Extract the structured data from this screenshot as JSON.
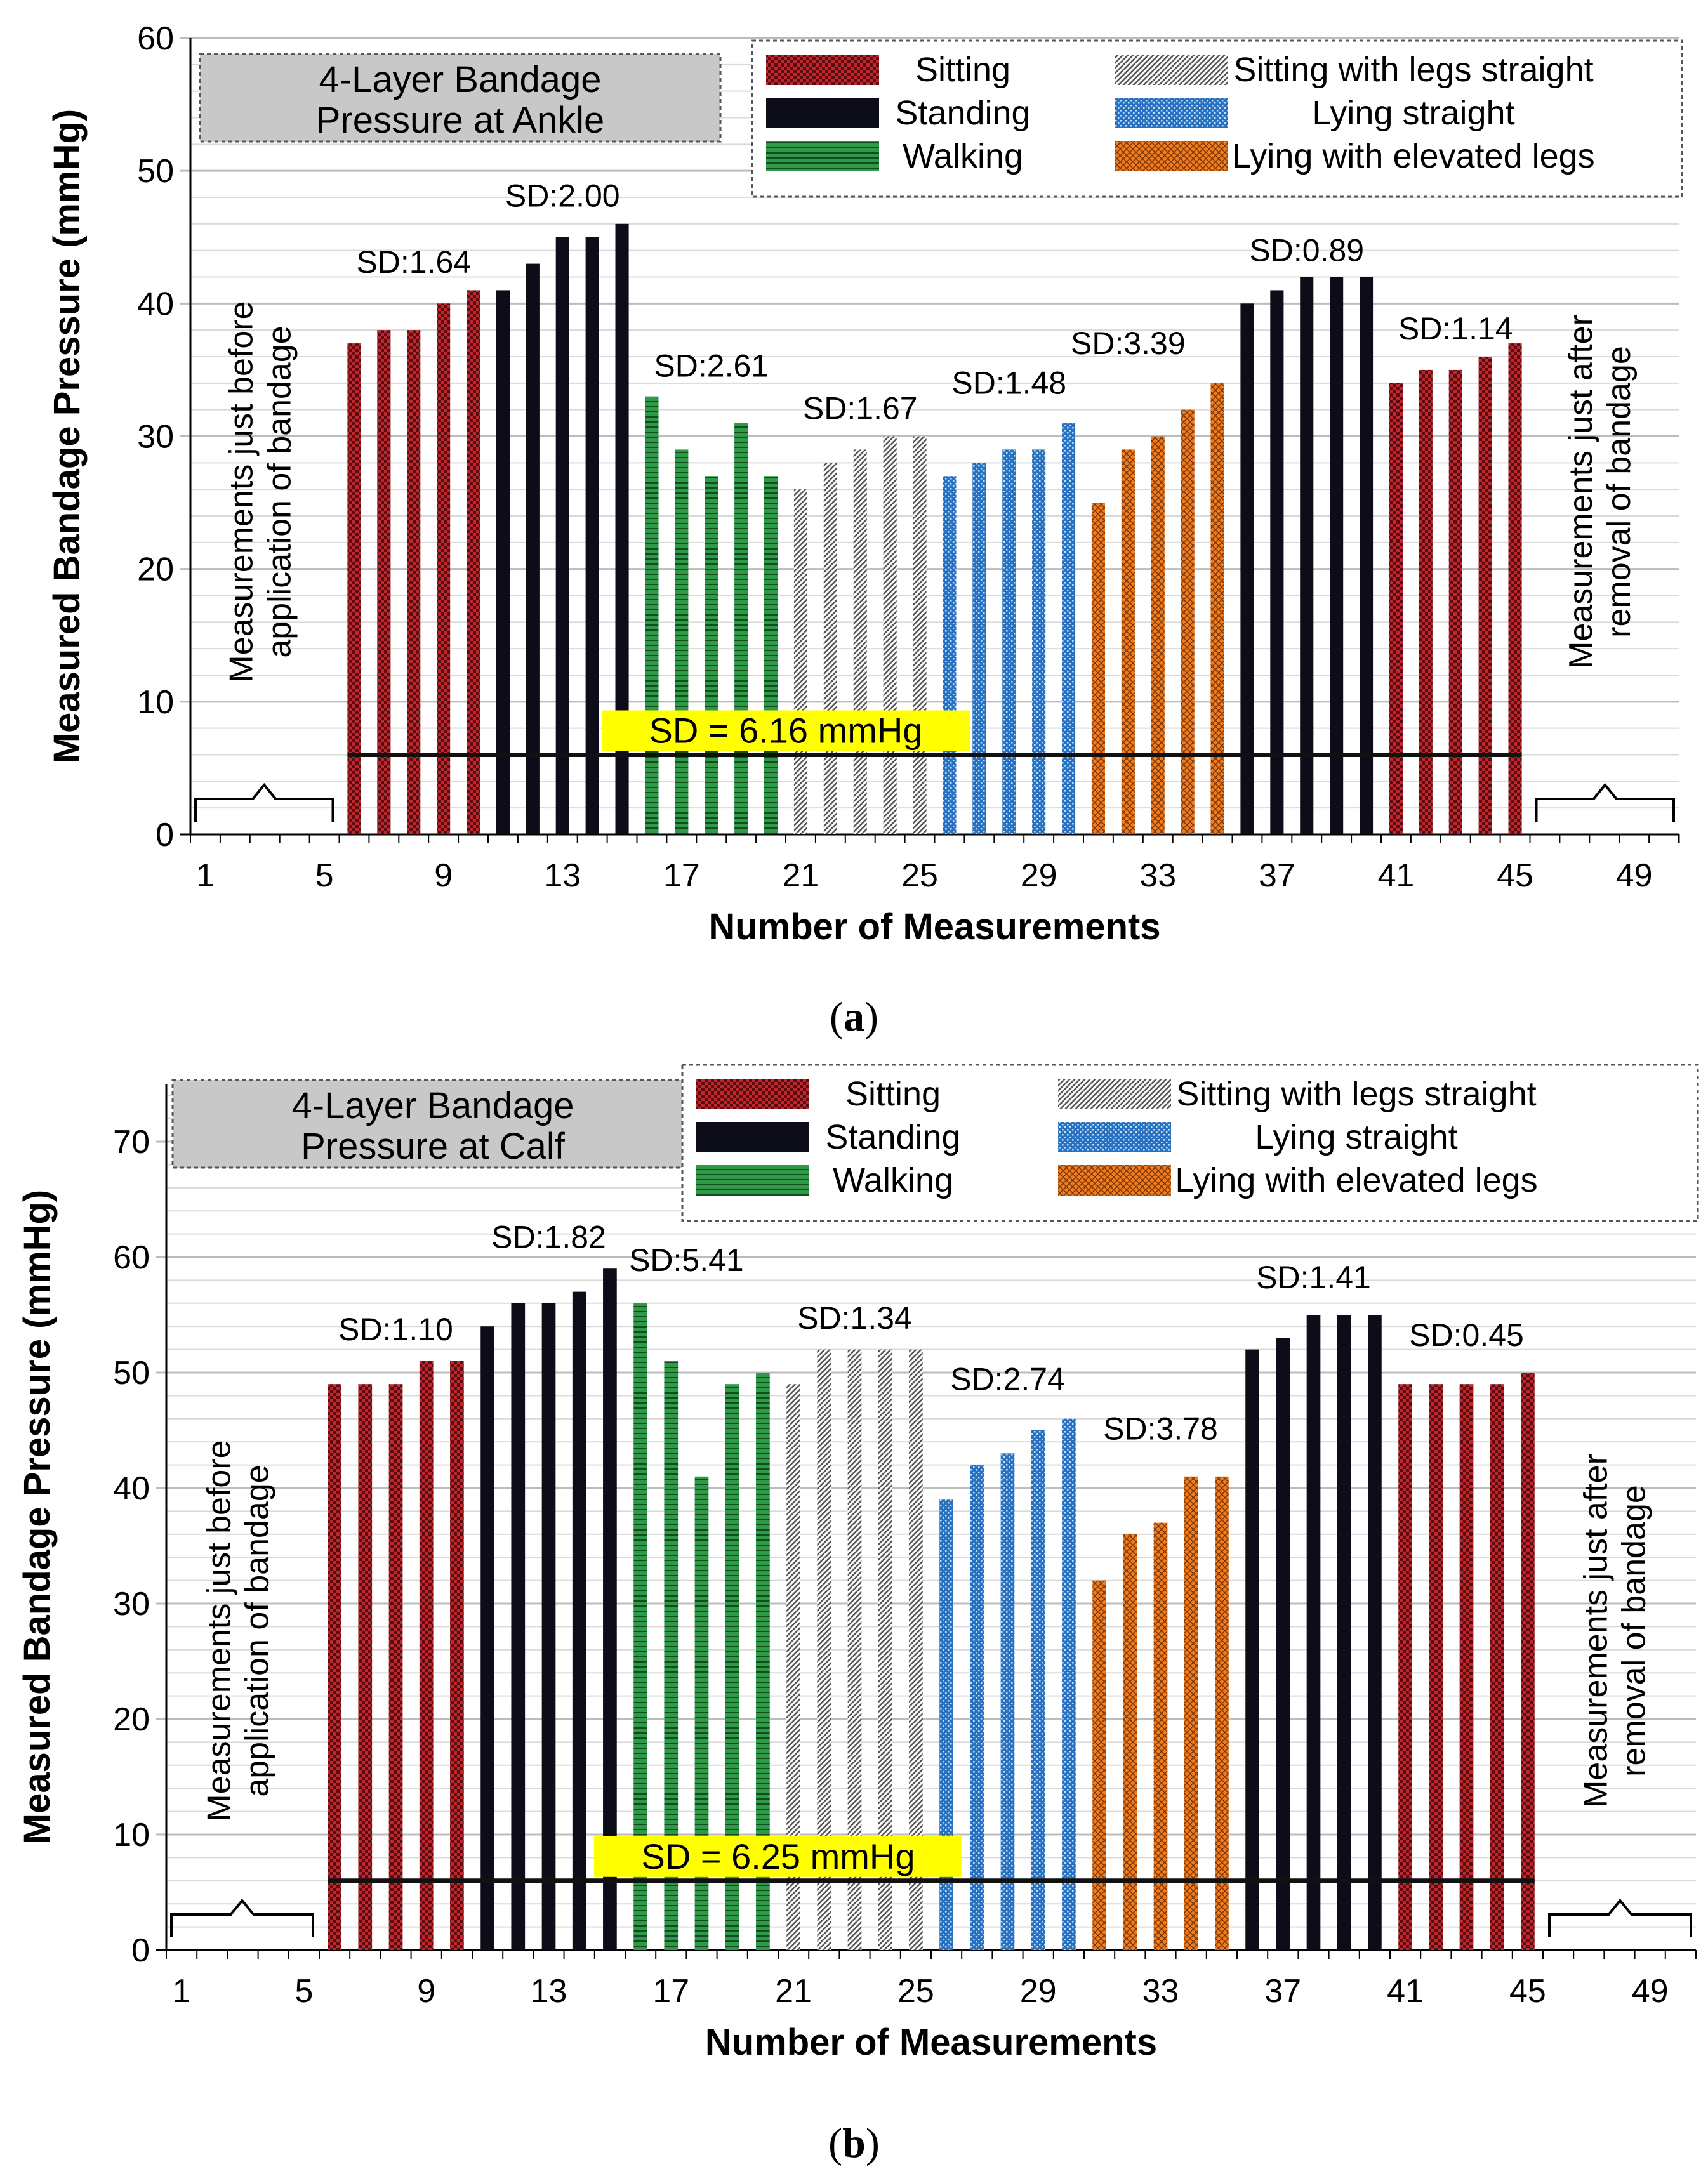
{
  "colors": {
    "sitting": "#c0262c",
    "standing": "#0d0d1a",
    "walking": "#2e9a48",
    "sitting_legs_straight": "#9c9c9c",
    "lying_straight": "#2a72c0",
    "lying_elevated": "#ee7d22",
    "grid": "#c8c8c8",
    "title_box": "#c8c8c8",
    "sd_highlight": "#ffff00"
  },
  "legend": [
    {
      "key": "sitting",
      "label": "Sitting"
    },
    {
      "key": "standing",
      "label": "Standing"
    },
    {
      "key": "walking",
      "label": "Walking"
    },
    {
      "key": "sitting_legs_straight",
      "label": "Sitting with legs straight"
    },
    {
      "key": "lying_straight",
      "label": "Lying straight"
    },
    {
      "key": "lying_elevated",
      "label": "Lying with elevated legs"
    }
  ],
  "chart_data": [
    {
      "type": "bar",
      "panel": "a",
      "caption": "a",
      "title_line1": "4-Layer Bandage",
      "title_line2": "Pressure at Ankle",
      "xlabel": "Number of Measurements",
      "ylabel": "Measured Bandage Pressure (mmHg)",
      "ylim": [
        0,
        60
      ],
      "yticks": [
        0,
        10,
        20,
        30,
        40,
        50,
        60
      ],
      "xlim": [
        1,
        50
      ],
      "xticks": [
        1,
        5,
        9,
        13,
        17,
        21,
        25,
        29,
        33,
        37,
        41,
        45,
        49
      ],
      "bars": [
        {
          "x": 6,
          "value": 37,
          "group": "sitting"
        },
        {
          "x": 7,
          "value": 38,
          "group": "sitting"
        },
        {
          "x": 8,
          "value": 38,
          "group": "sitting"
        },
        {
          "x": 9,
          "value": 40,
          "group": "sitting"
        },
        {
          "x": 10,
          "value": 41,
          "group": "sitting"
        },
        {
          "x": 11,
          "value": 41,
          "group": "standing"
        },
        {
          "x": 12,
          "value": 43,
          "group": "standing"
        },
        {
          "x": 13,
          "value": 45,
          "group": "standing"
        },
        {
          "x": 14,
          "value": 45,
          "group": "standing"
        },
        {
          "x": 15,
          "value": 46,
          "group": "standing"
        },
        {
          "x": 16,
          "value": 33,
          "group": "walking"
        },
        {
          "x": 17,
          "value": 29,
          "group": "walking"
        },
        {
          "x": 18,
          "value": 27,
          "group": "walking"
        },
        {
          "x": 19,
          "value": 31,
          "group": "walking"
        },
        {
          "x": 20,
          "value": 27,
          "group": "walking"
        },
        {
          "x": 21,
          "value": 26,
          "group": "sitting_legs_straight"
        },
        {
          "x": 22,
          "value": 28,
          "group": "sitting_legs_straight"
        },
        {
          "x": 23,
          "value": 29,
          "group": "sitting_legs_straight"
        },
        {
          "x": 24,
          "value": 30,
          "group": "sitting_legs_straight"
        },
        {
          "x": 25,
          "value": 30,
          "group": "sitting_legs_straight"
        },
        {
          "x": 26,
          "value": 27,
          "group": "lying_straight"
        },
        {
          "x": 27,
          "value": 28,
          "group": "lying_straight"
        },
        {
          "x": 28,
          "value": 29,
          "group": "lying_straight"
        },
        {
          "x": 29,
          "value": 29,
          "group": "lying_straight"
        },
        {
          "x": 30,
          "value": 31,
          "group": "lying_straight"
        },
        {
          "x": 31,
          "value": 25,
          "group": "lying_elevated"
        },
        {
          "x": 32,
          "value": 29,
          "group": "lying_elevated"
        },
        {
          "x": 33,
          "value": 30,
          "group": "lying_elevated"
        },
        {
          "x": 34,
          "value": 32,
          "group": "lying_elevated"
        },
        {
          "x": 35,
          "value": 34,
          "group": "lying_elevated"
        },
        {
          "x": 36,
          "value": 40,
          "group": "standing"
        },
        {
          "x": 37,
          "value": 41,
          "group": "standing"
        },
        {
          "x": 38,
          "value": 42,
          "group": "standing"
        },
        {
          "x": 39,
          "value": 42,
          "group": "standing"
        },
        {
          "x": 40,
          "value": 42,
          "group": "standing"
        },
        {
          "x": 41,
          "value": 34,
          "group": "sitting"
        },
        {
          "x": 42,
          "value": 35,
          "group": "sitting"
        },
        {
          "x": 43,
          "value": 35,
          "group": "sitting"
        },
        {
          "x": 44,
          "value": 36,
          "group": "sitting"
        },
        {
          "x": 45,
          "value": 37,
          "group": "sitting"
        }
      ],
      "sd_labels": [
        {
          "text": "SD:1.64",
          "x": 8,
          "y": 42.3
        },
        {
          "text": "SD:2.00",
          "x": 13,
          "y": 47.3
        },
        {
          "text": "SD:2.61",
          "x": 18,
          "y": 34.5
        },
        {
          "text": "SD:1.67",
          "x": 23,
          "y": 31.3
        },
        {
          "text": "SD:1.48",
          "x": 28,
          "y": 33.2
        },
        {
          "text": "SD:3.39",
          "x": 32,
          "y": 36.2
        },
        {
          "text": "SD:0.89",
          "x": 38,
          "y": 43.2
        },
        {
          "text": "SD:1.14",
          "x": 43,
          "y": 37.3
        }
      ],
      "overall_sd_label": "SD = 6.16 mmHg",
      "overall_line": {
        "x_start": 6,
        "x_end": 45,
        "y": 6
      },
      "before_note_line1": "Measurements just before",
      "before_note_line2": "application of bandage",
      "after_note_line1": "Measurements just after",
      "after_note_line2": "removal of bandage"
    },
    {
      "type": "bar",
      "panel": "b",
      "caption": "b",
      "title_line1": "4-Layer Bandage",
      "title_line2": "Pressure at Calf",
      "xlabel": "Number of Measurements",
      "ylabel": "Measured Bandage Pressure (mmHg)",
      "ylim": [
        0,
        75
      ],
      "yticks": [
        0,
        10,
        20,
        30,
        40,
        50,
        60,
        70
      ],
      "xlim": [
        1,
        50
      ],
      "xticks": [
        1,
        5,
        9,
        13,
        17,
        21,
        25,
        29,
        33,
        37,
        41,
        45,
        49
      ],
      "bars": [
        {
          "x": 6,
          "value": 49,
          "group": "sitting"
        },
        {
          "x": 7,
          "value": 49,
          "group": "sitting"
        },
        {
          "x": 8,
          "value": 49,
          "group": "sitting"
        },
        {
          "x": 9,
          "value": 51,
          "group": "sitting"
        },
        {
          "x": 10,
          "value": 51,
          "group": "sitting"
        },
        {
          "x": 11,
          "value": 54,
          "group": "standing"
        },
        {
          "x": 12,
          "value": 56,
          "group": "standing"
        },
        {
          "x": 13,
          "value": 56,
          "group": "standing"
        },
        {
          "x": 14,
          "value": 57,
          "group": "standing"
        },
        {
          "x": 15,
          "value": 59,
          "group": "standing"
        },
        {
          "x": 16,
          "value": 56,
          "group": "walking"
        },
        {
          "x": 17,
          "value": 51,
          "group": "walking"
        },
        {
          "x": 18,
          "value": 41,
          "group": "walking"
        },
        {
          "x": 19,
          "value": 49,
          "group": "walking"
        },
        {
          "x": 20,
          "value": 50,
          "group": "walking"
        },
        {
          "x": 21,
          "value": 49,
          "group": "sitting_legs_straight"
        },
        {
          "x": 22,
          "value": 52,
          "group": "sitting_legs_straight"
        },
        {
          "x": 23,
          "value": 52,
          "group": "sitting_legs_straight"
        },
        {
          "x": 24,
          "value": 52,
          "group": "sitting_legs_straight"
        },
        {
          "x": 25,
          "value": 52,
          "group": "sitting_legs_straight"
        },
        {
          "x": 26,
          "value": 39,
          "group": "lying_straight"
        },
        {
          "x": 27,
          "value": 42,
          "group": "lying_straight"
        },
        {
          "x": 28,
          "value": 43,
          "group": "lying_straight"
        },
        {
          "x": 29,
          "value": 45,
          "group": "lying_straight"
        },
        {
          "x": 30,
          "value": 46,
          "group": "lying_straight"
        },
        {
          "x": 31,
          "value": 32,
          "group": "lying_elevated"
        },
        {
          "x": 32,
          "value": 36,
          "group": "lying_elevated"
        },
        {
          "x": 33,
          "value": 37,
          "group": "lying_elevated"
        },
        {
          "x": 34,
          "value": 41,
          "group": "lying_elevated"
        },
        {
          "x": 35,
          "value": 41,
          "group": "lying_elevated"
        },
        {
          "x": 36,
          "value": 52,
          "group": "standing"
        },
        {
          "x": 37,
          "value": 53,
          "group": "standing"
        },
        {
          "x": 38,
          "value": 55,
          "group": "standing"
        },
        {
          "x": 39,
          "value": 55,
          "group": "standing"
        },
        {
          "x": 40,
          "value": 55,
          "group": "standing"
        },
        {
          "x": 41,
          "value": 49,
          "group": "sitting"
        },
        {
          "x": 42,
          "value": 49,
          "group": "sitting"
        },
        {
          "x": 43,
          "value": 49,
          "group": "sitting"
        },
        {
          "x": 44,
          "value": 49,
          "group": "sitting"
        },
        {
          "x": 45,
          "value": 50,
          "group": "sitting"
        }
      ],
      "sd_labels": [
        {
          "text": "SD:1.10",
          "x": 8,
          "y": 52.8
        },
        {
          "text": "SD:1.82",
          "x": 13,
          "y": 60.8
        },
        {
          "text": "SD:5.41",
          "x": 17.5,
          "y": 58.8
        },
        {
          "text": "SD:1.34",
          "x": 23,
          "y": 53.8
        },
        {
          "text": "SD:2.74",
          "x": 28,
          "y": 48.5
        },
        {
          "text": "SD:3.78",
          "x": 33,
          "y": 44.2
        },
        {
          "text": "SD:1.41",
          "x": 38,
          "y": 57.3
        },
        {
          "text": "SD:0.45",
          "x": 43,
          "y": 52.3
        }
      ],
      "overall_sd_label": "SD = 6.25 mmHg",
      "overall_line": {
        "x_start": 6,
        "x_end": 45,
        "y": 6
      },
      "before_note_line1": "Measurements just before",
      "before_note_line2": "application of bandage",
      "after_note_line1": "Measurements just after",
      "after_note_line2": "removal of bandage"
    }
  ]
}
